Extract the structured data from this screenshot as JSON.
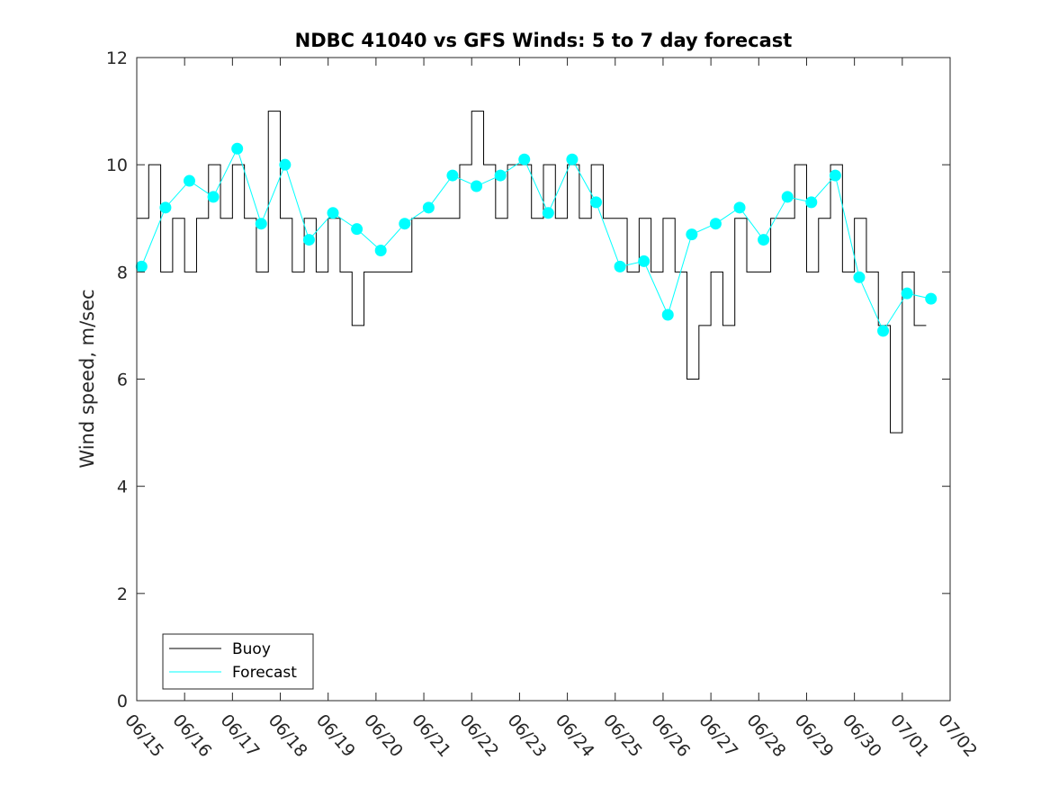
{
  "chart_data": {
    "type": "line",
    "title": "NDBC 41040 vs GFS Winds: 5 to 7 day forecast",
    "xlabel": "",
    "ylabel": "Wind speed, m/sec",
    "xlim": [
      0,
      17
    ],
    "ylim": [
      0,
      12
    ],
    "x_tick_labels": [
      "06/15",
      "06/16",
      "06/17",
      "06/18",
      "06/19",
      "06/20",
      "06/21",
      "06/22",
      "06/23",
      "06/24",
      "06/25",
      "06/26",
      "06/27",
      "06/28",
      "06/29",
      "06/30",
      "07/01",
      "07/02"
    ],
    "y_ticks": [
      0,
      2,
      4,
      6,
      8,
      10,
      12
    ],
    "legend": {
      "position": "bottom-left",
      "entries": [
        "Buoy",
        "Forecast"
      ]
    },
    "colors": {
      "buoy": "#000000",
      "forecast": "#00ffff",
      "axes": "#262626"
    },
    "x_unit_note": "days since 06/15",
    "series": [
      {
        "name": "Buoy",
        "style": "line",
        "x": [
          0,
          0.25,
          0.5,
          0.75,
          1,
          1.25,
          1.5,
          1.75,
          2,
          2.25,
          2.5,
          2.75,
          3,
          3.25,
          3.5,
          3.75,
          4,
          4.25,
          4.5,
          4.75,
          5,
          5.25,
          5.5,
          5.75,
          6,
          6.25,
          6.5,
          6.75,
          7,
          7.25,
          7.5,
          7.75,
          8,
          8.25,
          8.5,
          8.75,
          9,
          9.25,
          9.5,
          9.75,
          10,
          10.25,
          10.5,
          10.75,
          11,
          11.25,
          11.5,
          11.75,
          12,
          12.25,
          12.5,
          12.75,
          13,
          13.25,
          13.5,
          13.75,
          14,
          14.25,
          14.5,
          14.75,
          15,
          15.25,
          15.5,
          15.75,
          16,
          16.25,
          16.5
        ],
        "y": [
          9,
          10,
          8,
          9,
          8,
          9,
          10,
          9,
          10,
          9,
          8,
          11,
          9,
          8,
          9,
          8,
          9,
          8,
          7,
          8,
          8,
          8,
          8,
          9,
          9,
          9,
          9,
          10,
          11,
          10,
          9,
          10,
          10,
          9,
          10,
          9,
          10,
          9,
          10,
          9,
          9,
          8,
          9,
          8,
          9,
          8,
          6,
          7,
          8,
          7,
          9,
          8,
          8,
          9,
          9,
          10,
          8,
          9,
          10,
          8,
          9,
          8,
          7,
          5,
          8,
          7,
          7
        ]
      },
      {
        "name": "Forecast",
        "style": "lines+markers",
        "x": [
          0.1,
          0.6,
          1.1,
          1.6,
          2.1,
          2.6,
          3.1,
          3.6,
          4.1,
          4.6,
          5.1,
          5.6,
          6.1,
          6.6,
          7.1,
          7.6,
          8.1,
          8.6,
          9.1,
          9.6,
          10.1,
          10.6,
          11.1,
          11.6,
          12.1,
          12.6,
          13.1,
          13.6,
          14.1,
          14.6,
          15.1,
          15.6,
          16.1,
          16.6
        ],
        "y": [
          8.1,
          9.2,
          9.7,
          9.4,
          10.3,
          8.9,
          10.0,
          8.6,
          9.1,
          8.8,
          8.4,
          8.9,
          9.2,
          9.8,
          9.6,
          9.8,
          10.1,
          9.1,
          10.1,
          9.3,
          8.1,
          8.2,
          7.2,
          8.7,
          8.9,
          9.2,
          8.6,
          9.4,
          9.3,
          9.8,
          7.9,
          6.9,
          7.6,
          7.5
        ]
      }
    ]
  }
}
